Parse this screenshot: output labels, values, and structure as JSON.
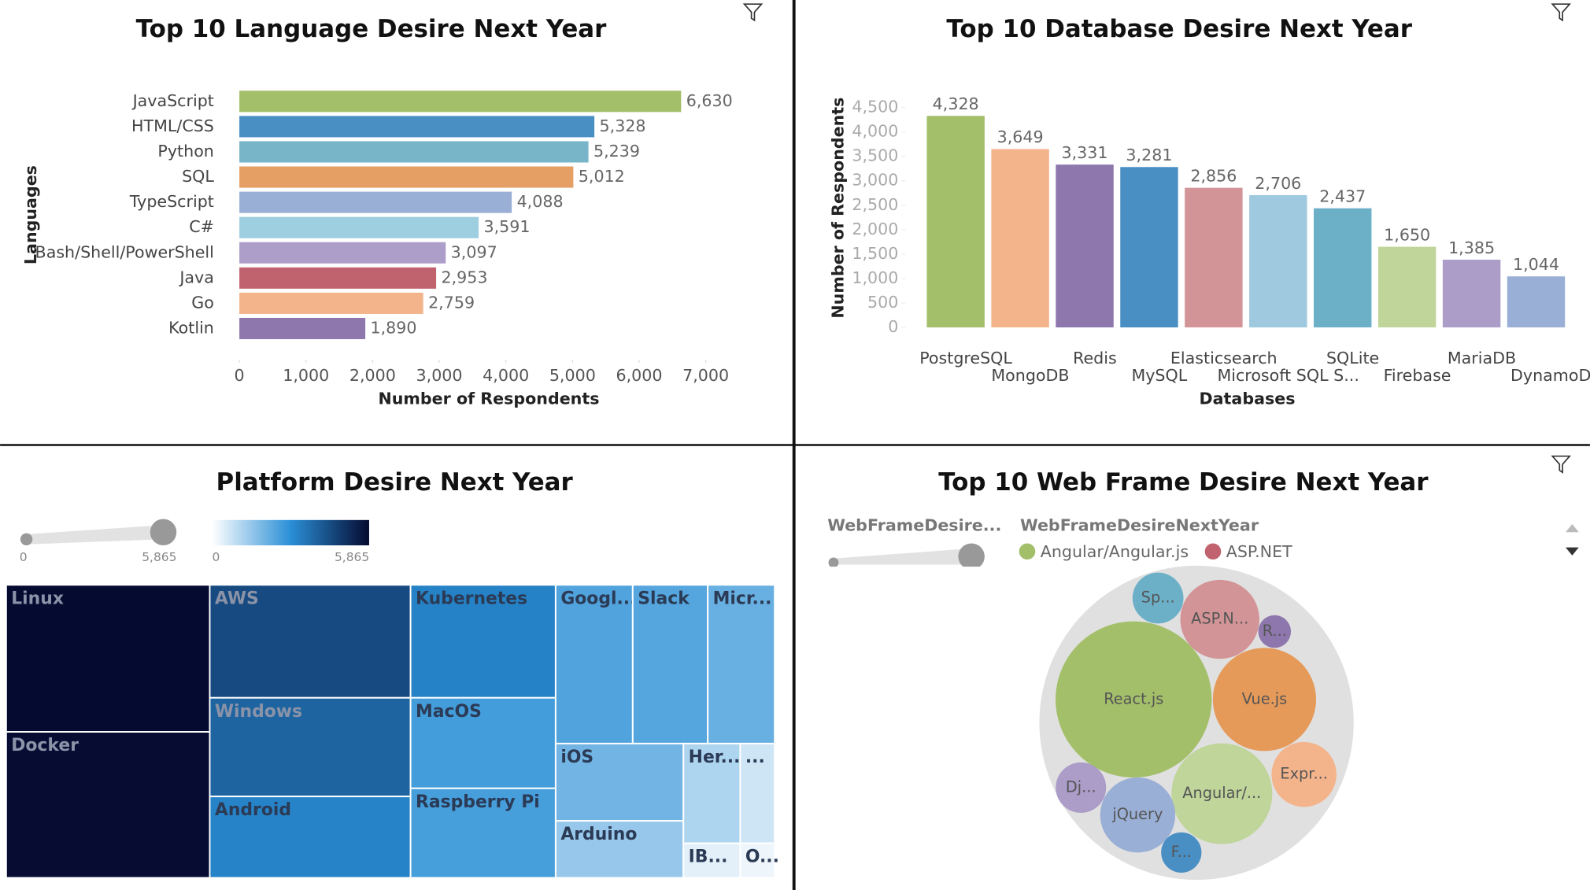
{
  "chart_data": [
    {
      "type": "hbar",
      "title": "Top 10 Language Desire Next Year",
      "x_label": "Number of Respondents",
      "y_label": "Languages",
      "categories": [
        "JavaScript",
        "HTML/CSS",
        "Python",
        "SQL",
        "TypeScript",
        "C#",
        "Bash/Shell/PowerShell",
        "Java",
        "Go",
        "Kotlin"
      ],
      "values": [
        6630,
        5328,
        5239,
        5012,
        4088,
        3591,
        3097,
        2953,
        2759,
        1890
      ],
      "value_labels": [
        "6,630",
        "5,328",
        "5,239",
        "5,012",
        "4,088",
        "3,591",
        "3,097",
        "2,953",
        "2,759",
        "1,890"
      ],
      "colors": [
        "#a3bf6a",
        "#4a8fc4",
        "#78b5c9",
        "#e59f64",
        "#9aafd6",
        "#9dcfe0",
        "#ad9dc9",
        "#c0636e",
        "#f3b48c",
        "#8e77ad"
      ],
      "xlim": [
        0,
        7000
      ],
      "xticks": [
        0,
        {
          "value": 1000,
          "label": "1,000"
        },
        {
          "value": 2000,
          "label": "2,000"
        },
        {
          "value": 3000,
          "label": "3,000"
        },
        {
          "value": 4000,
          "label": "4,000"
        },
        {
          "value": 5000,
          "label": "5,000"
        },
        {
          "value": 6000,
          "label": "6,000"
        },
        {
          "value": 7000,
          "label": "7,000"
        }
      ]
    },
    {
      "type": "bar",
      "title": "Top 10 Database Desire Next Year",
      "x_label": "Databases",
      "y_label": "Number of Respondents",
      "categories": [
        "PostgreSQL",
        "MongoDB",
        "Redis",
        "MySQL",
        "Elasticsearch",
        "Microsoft SQL S...",
        "SQLite",
        "Firebase",
        "MariaDB",
        "DynamoDB"
      ],
      "values": [
        4328,
        3649,
        3331,
        3281,
        2856,
        2706,
        2437,
        1650,
        1385,
        1044
      ],
      "value_labels": [
        "4,328",
        "3,649",
        "3,331",
        "3,281",
        "2,856",
        "2,706",
        "2,437",
        "1,650",
        "1,385",
        "1,044"
      ],
      "colors": [
        "#a3bf6a",
        "#f3b48c",
        "#8e77ad",
        "#4a8fc4",
        "#d29497",
        "#9ec9de",
        "#6cb0c8",
        "#bfd59a",
        "#ab9cc8",
        "#9aafd6"
      ],
      "ylim": [
        0,
        4500
      ],
      "yticks": [
        0,
        500,
        {
          "value": 1000,
          "label": "1,000"
        },
        {
          "value": 1500,
          "label": "1,500"
        },
        {
          "value": 2000,
          "label": "2,000"
        },
        {
          "value": 2500,
          "label": "2,500"
        },
        {
          "value": 3000,
          "label": "3,000"
        },
        {
          "value": 3500,
          "label": "3,500"
        },
        {
          "value": 4000,
          "label": "4,000"
        },
        {
          "value": 4500,
          "label": "4,500"
        }
      ]
    },
    {
      "type": "treemap",
      "title": "Platform Desire Next Year",
      "categories": [
        "Linux",
        "Docker",
        "AWS",
        "Windows",
        "Android",
        "Kubernetes",
        "MacOS",
        "Raspberry Pi",
        "Googl...",
        "Slack",
        "Micr...",
        "iOS",
        "Arduino",
        "Her...",
        "...",
        "IB...",
        "O..."
      ],
      "values": [
        5865,
        5824,
        4444,
        3883,
        3203,
        3210,
        2574,
        2545,
        2397,
        2334,
        2082,
        1936,
        1427,
        1110,
        674,
        385,
        234
      ],
      "size_legend": [
        0,
        {
          "value": 5865,
          "label": "5,865"
        }
      ],
      "color_legend": [
        0,
        {
          "value": 5865,
          "label": "5,865"
        }
      ],
      "colorscale": [
        "#ffffff",
        "#2a8fd6",
        "#050a30"
      ]
    },
    {
      "type": "bubble",
      "title": "Top 10 Web Frame Desire Next Year",
      "size_label": "WebFrameDesire...",
      "legend_title": "WebFrameDesireNextYear",
      "legend": [
        {
          "name": "Angular/Angular.js",
          "color": "#a3bf6a"
        },
        {
          "name": "ASP.NET",
          "color": "#c0636e"
        }
      ],
      "categories": [
        "React.js",
        "Vue.js",
        "Angular/...",
        "ASP.N...",
        "jQuery",
        "Expr...",
        "Sp...",
        "Dj...",
        "F...",
        "R..."
      ],
      "values": [
        4800,
        2100,
        2000,
        1230,
        1110,
        830,
        510,
        500,
        320,
        210
      ],
      "colors": [
        "#a3bf6a",
        "#e59a5a",
        "#bfd59a",
        "#d29497",
        "#9aafd6",
        "#f3b48c",
        "#6cb0c8",
        "#ab9cc8",
        "#4a8fc4",
        "#8e77ad"
      ]
    }
  ]
}
